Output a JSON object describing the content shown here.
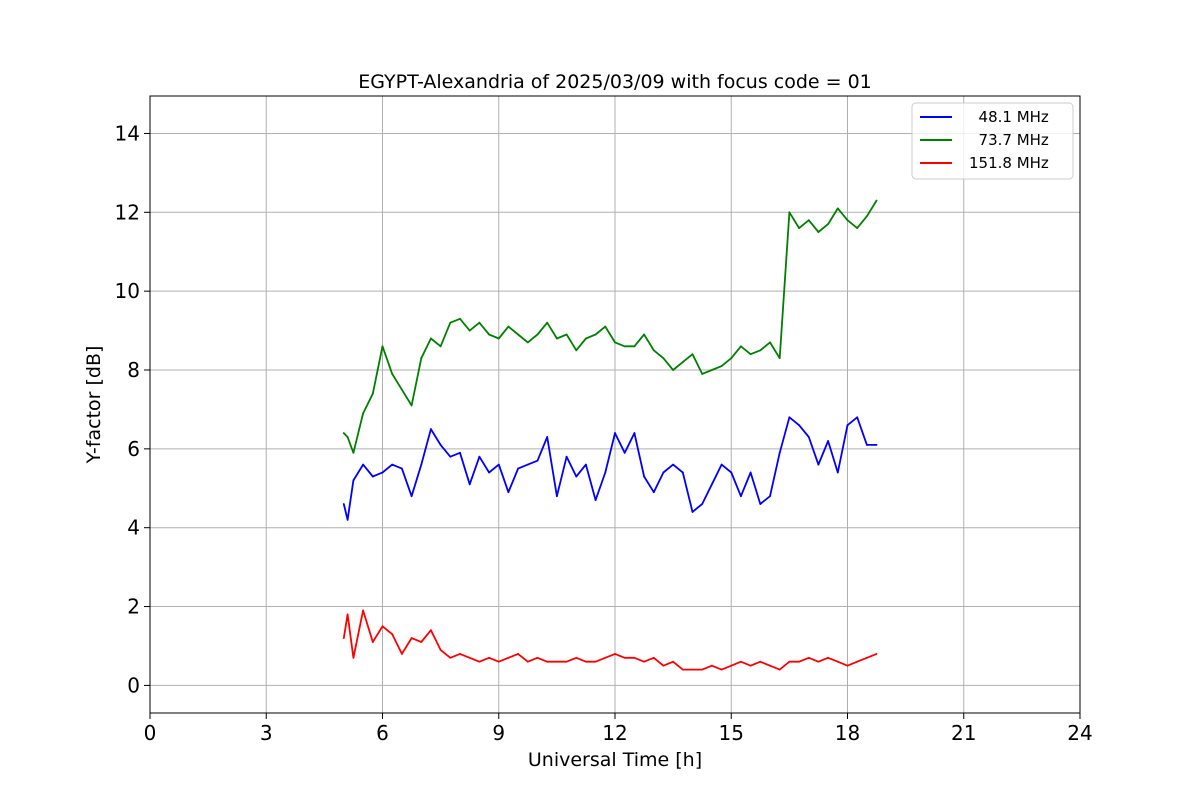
{
  "chart_data": {
    "type": "line",
    "title": "EGYPT-Alexandria of 2025/03/09 with focus code = 01",
    "xlabel": "Universal Time [h]",
    "ylabel": "Y-factor [dB]",
    "xlim": [
      0,
      24
    ],
    "ylim": [
      -0.7,
      14.95
    ],
    "x_ticks": [
      0,
      3,
      6,
      9,
      12,
      15,
      18,
      21,
      24
    ],
    "x_tick_labels": [
      "0",
      "3",
      "6",
      "9",
      "12",
      "15",
      "18",
      "21",
      "24"
    ],
    "y_ticks": [
      0,
      2,
      4,
      6,
      8,
      10,
      12,
      14
    ],
    "y_tick_labels": [
      "0",
      "2",
      "4",
      "6",
      "8",
      "10",
      "12",
      "14"
    ],
    "grid": true,
    "legend_position": "top-right",
    "series": [
      {
        "name": "  48.1 MHz",
        "color": "#0000ff",
        "x": [
          5.0,
          5.1,
          5.25,
          5.5,
          5.75,
          6.0,
          6.25,
          6.5,
          6.75,
          7.0,
          7.25,
          7.5,
          7.75,
          8.0,
          8.25,
          8.5,
          8.75,
          9.0,
          9.25,
          9.5,
          9.75,
          10.0,
          10.25,
          10.5,
          10.75,
          11.0,
          11.25,
          11.5,
          11.75,
          12.0,
          12.25,
          12.5,
          12.75,
          13.0,
          13.25,
          13.5,
          13.75,
          14.0,
          14.25,
          14.5,
          14.75,
          15.0,
          15.25,
          15.5,
          15.75,
          16.0,
          16.25,
          16.5,
          16.75,
          17.0,
          17.25,
          17.5,
          17.75,
          18.0,
          18.25,
          18.5,
          18.75
        ],
        "y": [
          4.6,
          4.2,
          5.2,
          5.6,
          5.3,
          5.4,
          5.6,
          5.5,
          4.8,
          5.6,
          6.5,
          6.1,
          5.8,
          5.9,
          5.1,
          5.8,
          5.4,
          5.6,
          4.9,
          5.5,
          5.6,
          5.7,
          6.3,
          4.8,
          5.8,
          5.3,
          5.6,
          4.7,
          5.4,
          6.4,
          5.9,
          6.4,
          5.3,
          4.9,
          5.4,
          5.6,
          5.4,
          4.4,
          4.6,
          5.1,
          5.6,
          5.4,
          4.8,
          5.4,
          4.6,
          4.8,
          5.9,
          6.8,
          6.6,
          6.3,
          5.6,
          6.2,
          5.4,
          6.6,
          6.8,
          6.1,
          6.1
        ]
      },
      {
        "name": "  73.7 MHz",
        "color": "#008000",
        "x": [
          5.0,
          5.1,
          5.25,
          5.5,
          5.75,
          6.0,
          6.25,
          6.5,
          6.75,
          7.0,
          7.25,
          7.5,
          7.75,
          8.0,
          8.25,
          8.5,
          8.75,
          9.0,
          9.25,
          9.5,
          9.75,
          10.0,
          10.25,
          10.5,
          10.75,
          11.0,
          11.25,
          11.5,
          11.75,
          12.0,
          12.25,
          12.5,
          12.75,
          13.0,
          13.25,
          13.5,
          13.75,
          14.0,
          14.25,
          14.5,
          14.75,
          15.0,
          15.25,
          15.5,
          15.75,
          16.0,
          16.25,
          16.5,
          16.75,
          17.0,
          17.25,
          17.5,
          17.75,
          18.0,
          18.25,
          18.5,
          18.75
        ],
        "y": [
          6.4,
          6.3,
          5.9,
          6.9,
          7.4,
          8.6,
          7.9,
          7.5,
          7.1,
          8.3,
          8.8,
          8.6,
          9.2,
          9.3,
          9.0,
          9.2,
          8.9,
          8.8,
          9.1,
          8.9,
          8.7,
          8.9,
          9.2,
          8.8,
          8.9,
          8.5,
          8.8,
          8.9,
          9.1,
          8.7,
          8.6,
          8.6,
          8.9,
          8.5,
          8.3,
          8.0,
          8.2,
          8.4,
          7.9,
          8.0,
          8.1,
          8.3,
          8.6,
          8.4,
          8.5,
          8.7,
          8.3,
          12.0,
          11.6,
          11.8,
          11.5,
          11.7,
          12.1,
          11.8,
          11.6,
          11.9,
          12.3
        ]
      },
      {
        "name": "151.8 MHz",
        "color": "#ff0000",
        "x": [
          5.0,
          5.1,
          5.25,
          5.5,
          5.75,
          6.0,
          6.25,
          6.5,
          6.75,
          7.0,
          7.25,
          7.5,
          7.75,
          8.0,
          8.25,
          8.5,
          8.75,
          9.0,
          9.25,
          9.5,
          9.75,
          10.0,
          10.25,
          10.5,
          10.75,
          11.0,
          11.25,
          11.5,
          11.75,
          12.0,
          12.25,
          12.5,
          12.75,
          13.0,
          13.25,
          13.5,
          13.75,
          14.0,
          14.25,
          14.5,
          14.75,
          15.0,
          15.25,
          15.5,
          15.75,
          16.0,
          16.25,
          16.5,
          16.75,
          17.0,
          17.25,
          17.5,
          17.75,
          18.0,
          18.25,
          18.5,
          18.75
        ],
        "y": [
          1.2,
          1.8,
          0.7,
          1.9,
          1.1,
          1.5,
          1.3,
          0.8,
          1.2,
          1.1,
          1.4,
          0.9,
          0.7,
          0.8,
          0.7,
          0.6,
          0.7,
          0.6,
          0.7,
          0.8,
          0.6,
          0.7,
          0.6,
          0.6,
          0.6,
          0.7,
          0.6,
          0.6,
          0.7,
          0.8,
          0.7,
          0.7,
          0.6,
          0.7,
          0.5,
          0.6,
          0.4,
          0.4,
          0.4,
          0.5,
          0.4,
          0.5,
          0.6,
          0.5,
          0.6,
          0.5,
          0.4,
          0.6,
          0.6,
          0.7,
          0.6,
          0.7,
          0.6,
          0.5,
          0.6,
          0.7,
          0.8
        ]
      }
    ]
  }
}
